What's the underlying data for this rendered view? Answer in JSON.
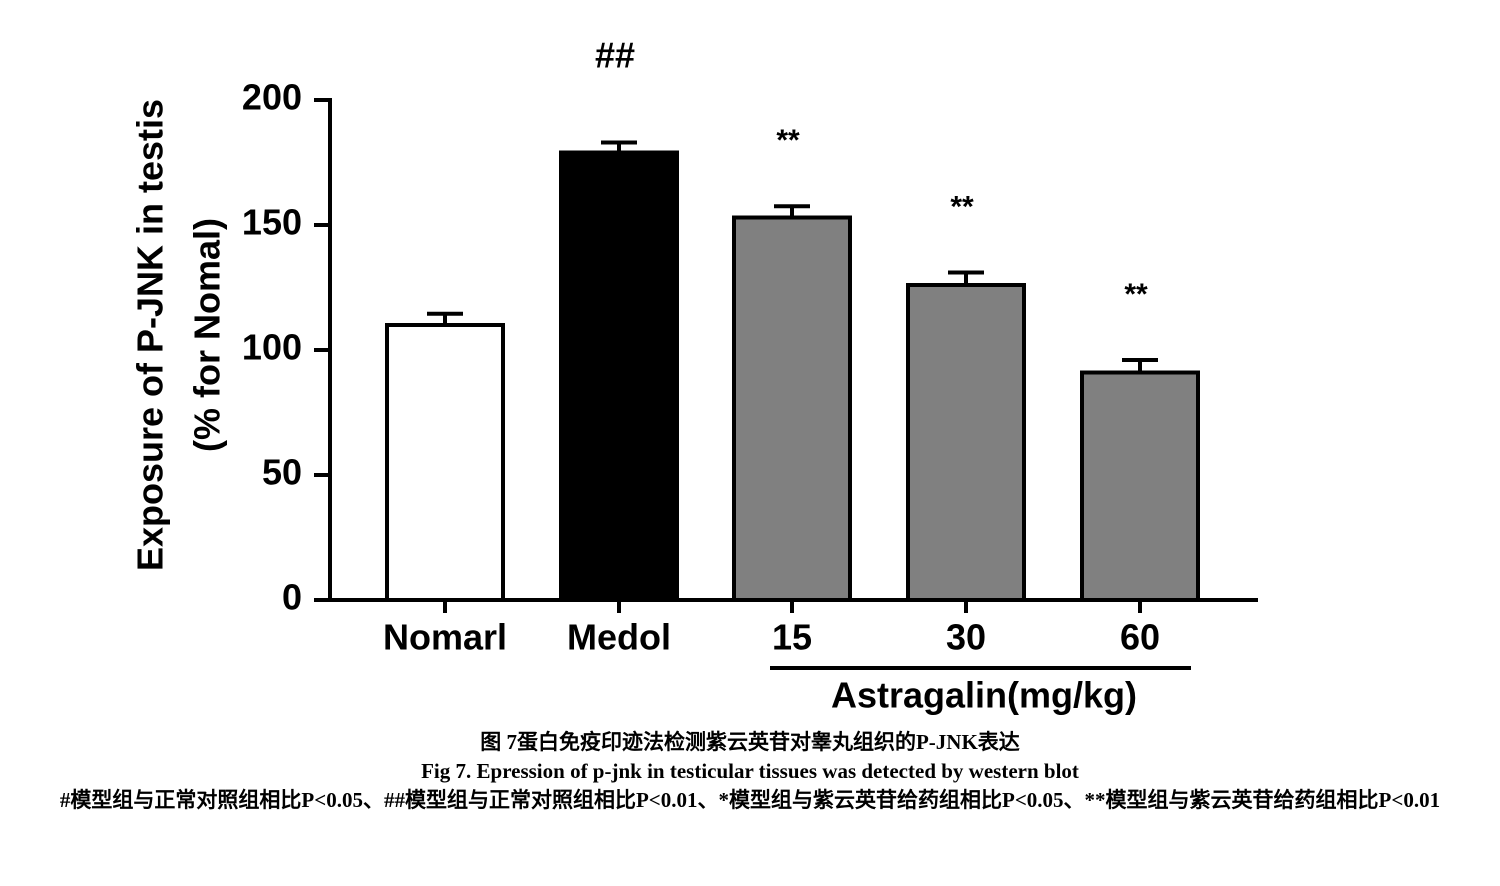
{
  "chart_data": {
    "type": "bar",
    "y_label": [
      "Exposure of P-JNK in testis",
      "(% for Nomal)"
    ],
    "categories": [
      "Nomarl",
      "Medol",
      "15",
      "30",
      "60"
    ],
    "values": [
      110,
      179,
      153,
      126,
      91
    ],
    "errors": [
      4.5,
      4,
      4.5,
      5,
      5
    ],
    "colors": [
      "#ffffff",
      "#000000",
      "#808080",
      "#808080",
      "#808080"
    ],
    "markers": [
      null,
      "##",
      "**",
      "**",
      "**"
    ],
    "group_label": "Astragalin(mg/kg)",
    "ylim": [
      0,
      200
    ],
    "yticks": [
      0,
      50,
      100,
      150,
      200
    ]
  },
  "captions": [
    "图 7蛋白免疫印迹法检测紫云英苷对睾丸组织的P-JNK表达",
    "Fig 7. Epression of p-jnk in testicular tissues was detected by western blot",
    "#模型组与正常对照组相比P<0.05、##模型组与正常对照组相比P<0.01、*模型组与紫云英苷给药组相比P<0.05、**模型组与紫云英苷给药组相比P<0.01"
  ]
}
